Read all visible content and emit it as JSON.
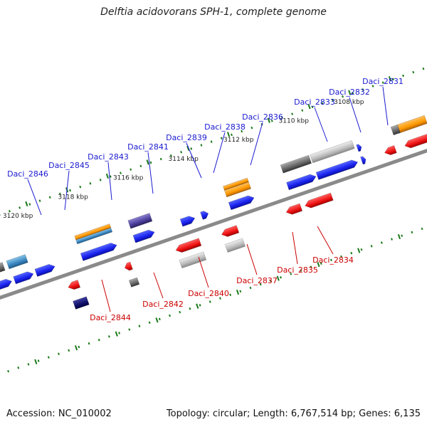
{
  "title": "Delftia acidovorans SPH-1, complete genome",
  "footer": {
    "accession": "Accession: NC_010002",
    "summary": "Topology: circular; Length: 6,767,514 bp; Genes: 6,135"
  },
  "colors": {
    "backbone": "#8a8a8a",
    "tick": "#1a7a1a",
    "forward_label": "#1a1ad0",
    "reverse_label": "#cc0000"
  },
  "ticks": [
    {
      "label": "3120 kbp",
      "kbp": 3120
    },
    {
      "label": "3118 kbp",
      "kbp": 3118
    },
    {
      "label": "3116 kbp",
      "kbp": 3116
    },
    {
      "label": "3114 kbp",
      "kbp": 3114
    },
    {
      "label": "3112 kbp",
      "kbp": 3112
    },
    {
      "label": "3110 kbp",
      "kbp": 3110
    },
    {
      "label": "3108 kbp",
      "kbp": 3108
    }
  ],
  "forward_genes": [
    {
      "label": "Daci_2846",
      "color": "#2233ee"
    },
    {
      "label": "Daci_2845",
      "color": "#2233ee"
    },
    {
      "label": "Daci_2843",
      "color": "#2233ee"
    },
    {
      "label": "Daci_2841",
      "color": "#2233ee"
    },
    {
      "label": "Daci_2839",
      "color": "#2233ee"
    },
    {
      "label": "Daci_2838",
      "color": "#2233ee"
    },
    {
      "label": "Daci_2836",
      "color": "#2233ee"
    },
    {
      "label": "Daci_2833",
      "color": "#2233ee"
    },
    {
      "label": "Daci_2832",
      "color": "#2233ee"
    },
    {
      "label": "Daci_2831",
      "color": "#2233ee"
    }
  ],
  "reverse_genes": [
    {
      "label": "Daci_2844",
      "color": "#ee1111"
    },
    {
      "label": "Daci_2842",
      "color": "#ee1111"
    },
    {
      "label": "Daci_2840",
      "color": "#ee1111"
    },
    {
      "label": "Daci_2837",
      "color": "#ee1111"
    },
    {
      "label": "Daci_2835",
      "color": "#ee1111"
    },
    {
      "label": "Daci_2834",
      "color": "#ee1111"
    }
  ]
}
